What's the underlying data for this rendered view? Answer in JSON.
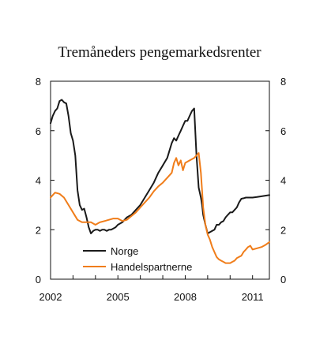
{
  "chart_data": {
    "type": "line",
    "title": "Tremåneders pengemarkedsrenter",
    "xlabel": "",
    "ylabel": "",
    "xlim": [
      2002,
      2011.75
    ],
    "ylim": [
      0,
      8
    ],
    "x_ticks": [
      2002,
      2005,
      2008,
      2011
    ],
    "y_ticks": [
      0,
      2,
      4,
      6,
      8
    ],
    "grid": false,
    "legend_position": "lower-left",
    "series": [
      {
        "name": "Norge",
        "color": "#1a1a1a",
        "x": [
          2002.0,
          2002.1,
          2002.2,
          2002.3,
          2002.4,
          2002.5,
          2002.6,
          2002.7,
          2002.8,
          2002.9,
          2003.0,
          2003.1,
          2003.2,
          2003.3,
          2003.4,
          2003.5,
          2003.6,
          2003.7,
          2003.8,
          2003.9,
          2004.0,
          2004.1,
          2004.2,
          2004.3,
          2004.4,
          2004.5,
          2004.6,
          2004.7,
          2004.8,
          2004.9,
          2005.0,
          2005.2,
          2005.4,
          2005.6,
          2005.8,
          2006.0,
          2006.2,
          2006.4,
          2006.6,
          2006.8,
          2007.0,
          2007.2,
          2007.4,
          2007.5,
          2007.6,
          2007.7,
          2007.8,
          2007.9,
          2008.0,
          2008.1,
          2008.2,
          2008.3,
          2008.4,
          2008.5,
          2008.6,
          2008.7,
          2008.75,
          2008.8,
          2008.9,
          2009.0,
          2009.1,
          2009.2,
          2009.3,
          2009.4,
          2009.5,
          2009.6,
          2009.7,
          2009.8,
          2009.9,
          2010.0,
          2010.1,
          2010.2,
          2010.3,
          2010.4,
          2010.5,
          2010.6,
          2010.7,
          2010.8,
          2010.9,
          2011.0,
          2011.2,
          2011.4,
          2011.6,
          2011.75
        ],
        "y": [
          6.3,
          6.6,
          6.8,
          6.9,
          7.2,
          7.25,
          7.15,
          7.1,
          6.6,
          5.9,
          5.6,
          5.0,
          3.6,
          3.0,
          2.8,
          2.85,
          2.5,
          2.1,
          1.85,
          1.95,
          2.0,
          2.0,
          1.95,
          2.0,
          2.0,
          1.95,
          2.0,
          2.0,
          2.05,
          2.1,
          2.2,
          2.3,
          2.5,
          2.6,
          2.8,
          3.0,
          3.3,
          3.6,
          3.9,
          4.3,
          4.6,
          4.9,
          5.5,
          5.7,
          5.6,
          5.8,
          6.0,
          6.2,
          6.4,
          6.4,
          6.6,
          6.8,
          6.9,
          5.0,
          3.7,
          3.3,
          3.0,
          2.6,
          2.2,
          1.85,
          1.9,
          1.95,
          2.0,
          2.2,
          2.2,
          2.3,
          2.35,
          2.5,
          2.6,
          2.7,
          2.7,
          2.8,
          2.9,
          3.1,
          3.25,
          3.27,
          3.3,
          3.3,
          3.3,
          3.3,
          3.32,
          3.35,
          3.38,
          3.4
        ]
      },
      {
        "name": "Handelspartnerne",
        "color": "#f07d1a",
        "x": [
          2002.0,
          2002.2,
          2002.4,
          2002.6,
          2002.8,
          2003.0,
          2003.2,
          2003.4,
          2003.6,
          2003.8,
          2004.0,
          2004.2,
          2004.4,
          2004.6,
          2004.8,
          2005.0,
          2005.2,
          2005.4,
          2005.6,
          2005.8,
          2006.0,
          2006.2,
          2006.4,
          2006.6,
          2006.8,
          2007.0,
          2007.2,
          2007.4,
          2007.5,
          2007.6,
          2007.7,
          2007.8,
          2007.9,
          2008.0,
          2008.2,
          2008.4,
          2008.6,
          2008.7,
          2008.8,
          2008.9,
          2009.0,
          2009.1,
          2009.2,
          2009.3,
          2009.4,
          2009.5,
          2009.6,
          2009.7,
          2009.8,
          2009.9,
          2010.0,
          2010.1,
          2010.2,
          2010.3,
          2010.4,
          2010.5,
          2010.6,
          2010.7,
          2010.8,
          2010.9,
          2011.0,
          2011.2,
          2011.4,
          2011.6,
          2011.75
        ],
        "y": [
          3.3,
          3.5,
          3.45,
          3.3,
          3.0,
          2.7,
          2.4,
          2.3,
          2.3,
          2.3,
          2.2,
          2.3,
          2.35,
          2.4,
          2.45,
          2.45,
          2.35,
          2.4,
          2.55,
          2.7,
          2.9,
          3.1,
          3.3,
          3.55,
          3.75,
          3.9,
          4.1,
          4.3,
          4.7,
          4.9,
          4.6,
          4.8,
          4.4,
          4.7,
          4.8,
          4.9,
          5.1,
          4.3,
          2.9,
          2.2,
          1.8,
          1.6,
          1.3,
          1.1,
          0.9,
          0.8,
          0.75,
          0.7,
          0.65,
          0.65,
          0.65,
          0.7,
          0.75,
          0.85,
          0.9,
          0.95,
          1.1,
          1.2,
          1.3,
          1.35,
          1.2,
          1.25,
          1.3,
          1.4,
          1.5
        ]
      }
    ]
  }
}
